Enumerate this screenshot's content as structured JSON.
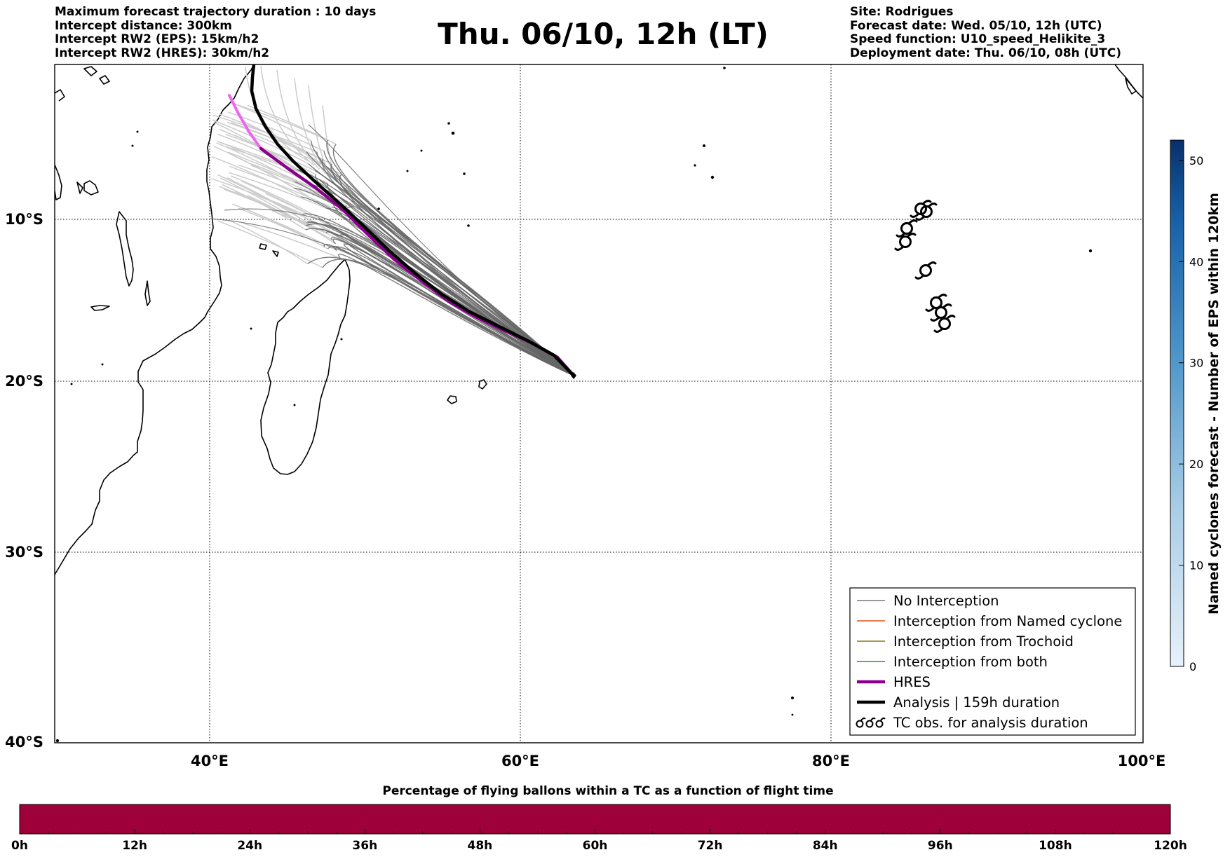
{
  "header": {
    "left_lines": [
      "Maximum forecast trajectory duration : 10 days",
      "Intercept distance: 300km",
      "Intercept RW2 (EPS):  15km/h2",
      "Intercept RW2 (HRES): 30km/h2"
    ],
    "title": "Thu. 06/10, 12h (LT)",
    "right_lines": [
      "Site: Rodrigues",
      "Forecast date: Wed. 05/10, 12h (UTC)",
      "Speed function: U10_speed_Helikite_3",
      "Deployment date: Thu. 06/10, 08h (UTC)"
    ]
  },
  "map": {
    "lon_ticks": [
      "40°E",
      "60°E",
      "80°E",
      "100°E"
    ],
    "lat_ticks": [
      "10°S",
      "20°S",
      "30°S",
      "40°S"
    ],
    "colors": {
      "eps_faded": "#cccccc",
      "eps": "#666666",
      "hres": "#8b008b",
      "hres_faded": "#ee66ee",
      "analysis": "#000000",
      "coast": "#000000"
    },
    "site_marker_icon": "diamond-icon",
    "tc_obs_icon": "tc-symbol-icon"
  },
  "legend": {
    "items": [
      {
        "label": "No Interception",
        "color": "#777777",
        "width": 1.5
      },
      {
        "label": "Interception from Named cyclone",
        "color": "#e8521e",
        "width": 1.5
      },
      {
        "label": "Interception from Trochoid",
        "color": "#8a7a10",
        "width": 1.5
      },
      {
        "label": "Interception from both",
        "color": "#1e9a2a",
        "width": 1.5
      },
      {
        "label": "HRES",
        "color": "#8b008b",
        "width": 4.5
      },
      {
        "label": "Analysis | 159h duration",
        "color": "#000000",
        "width": 4.5
      },
      {
        "label": "TC obs. for analysis duration",
        "icon": "tc-symbol-icon"
      }
    ]
  },
  "colorbar_right": {
    "label": "Named cyclones forecast - Number of EPS within 120km",
    "ticks": [
      "0",
      "10",
      "20",
      "30",
      "40",
      "50"
    ],
    "range": [
      0,
      52
    ],
    "color_low": "#e3eef9",
    "color_high": "#08306b"
  },
  "colorbar_bottom": {
    "title": "Percentage of flying ballons within a TC as a function of flight time",
    "ticks": [
      "0h",
      "12h",
      "24h",
      "36h",
      "48h",
      "60h",
      "72h",
      "84h",
      "96h",
      "108h",
      "120h"
    ],
    "range": [
      0,
      120
    ],
    "fill_color": "#9e003a"
  }
}
